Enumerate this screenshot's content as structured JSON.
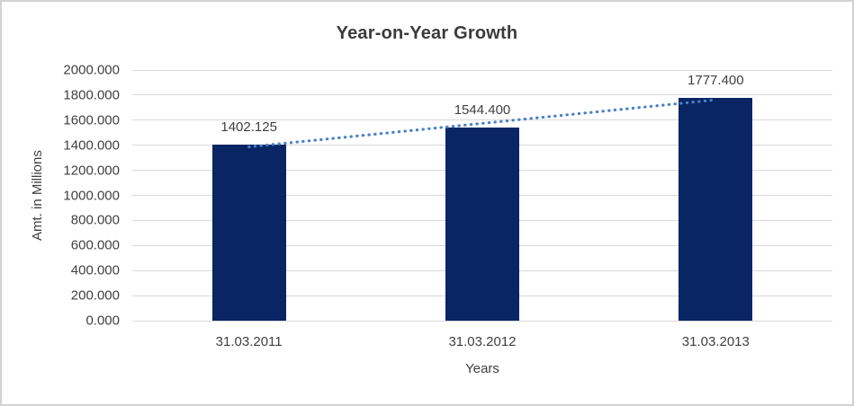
{
  "chart_data": {
    "type": "bar",
    "title": "Year-on-Year Growth",
    "xlabel": "Years",
    "ylabel": "Amt. in Millions",
    "categories": [
      "31.03.2011",
      "31.03.2012",
      "31.03.2013"
    ],
    "values": [
      1402.125,
      1544.4,
      1777.4
    ],
    "data_labels": [
      "1402.125",
      "1544.400",
      "1777.400"
    ],
    "ylim": [
      0,
      2000
    ],
    "ytick_step": 200,
    "ytick_labels": [
      "0.000",
      "200.000",
      "400.000",
      "600.000",
      "800.000",
      "1000.000",
      "1200.000",
      "1400.000",
      "1600.000",
      "1800.000",
      "2000.000"
    ],
    "grid": true,
    "legend": "none",
    "colors": {
      "bar": "#0a2563",
      "trendline": "#4a80c4",
      "gridline": "#d9d9d9",
      "text": "#404040",
      "title": "#3b3b3b",
      "frame_border": "#d2d2d2"
    },
    "trendline": {
      "kind": "linear",
      "style": "dotted"
    }
  }
}
